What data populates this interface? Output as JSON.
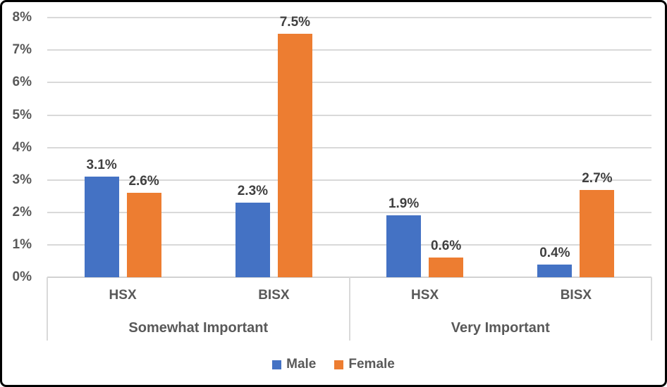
{
  "chart_data": {
    "type": "bar",
    "title": "",
    "xlabel": "",
    "ylabel": "",
    "ylim": [
      0,
      8
    ],
    "y_tick_step": 1,
    "y_ticks": [
      "0%",
      "1%",
      "2%",
      "3%",
      "4%",
      "5%",
      "6%",
      "7%",
      "8%"
    ],
    "grid": true,
    "legend_position": "bottom",
    "groups": [
      {
        "label": "Somewhat Important",
        "categories": [
          "HSX",
          "BISX"
        ]
      },
      {
        "label": "Very Important",
        "categories": [
          "HSX",
          "BISX"
        ]
      }
    ],
    "series": [
      {
        "name": "Male",
        "color": "#4472C4",
        "values": [
          3.1,
          2.3,
          1.9,
          0.4
        ],
        "value_labels": [
          "3.1%",
          "2.3%",
          "1.9%",
          "0.4%"
        ]
      },
      {
        "name": "Female",
        "color": "#ED7D31",
        "values": [
          2.6,
          7.5,
          0.6,
          2.7
        ],
        "value_labels": [
          "2.6%",
          "7.5%",
          "0.6%",
          "2.7%"
        ]
      }
    ],
    "legend": {
      "entries": [
        {
          "label": "Male",
          "color": "#4472C4"
        },
        {
          "label": "Female",
          "color": "#ED7D31"
        }
      ]
    }
  },
  "colors": {
    "series_male": "#4472C4",
    "series_female": "#ED7D31",
    "gridline": "#D9D9D9",
    "axis_line": "#D2D2D2",
    "axis_text": "#595959",
    "data_label_text": "#404040",
    "frame_border": "#000000",
    "background": "#FFFFFF"
  }
}
